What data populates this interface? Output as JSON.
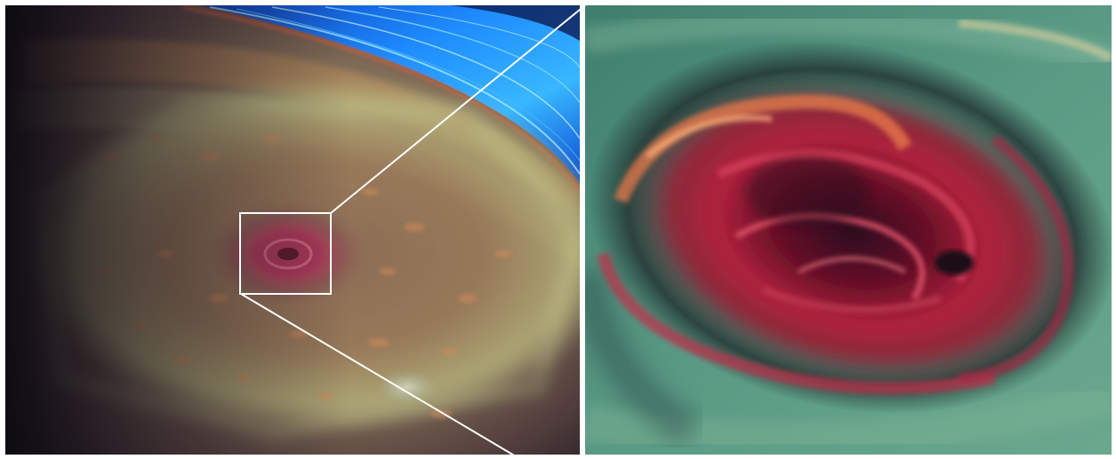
{
  "figure": {
    "left_panel": {
      "subject": "saturn-north-polar-hexagon",
      "has_zoom_box": true
    },
    "right_panel": {
      "subject": "north-polar-vortex-closeup"
    },
    "colors": {
      "ring_blue": "#1e8cff",
      "ring_highlight": "#9fe6ff",
      "atmosphere_tan": "#b59c6a",
      "hexagon_green": "#b6c083",
      "storm_red": "#b0223d",
      "vortex_dark": "#2a0d1e",
      "teal_clouds": "#4f8c78",
      "zoom_line": "#ffffff"
    }
  }
}
